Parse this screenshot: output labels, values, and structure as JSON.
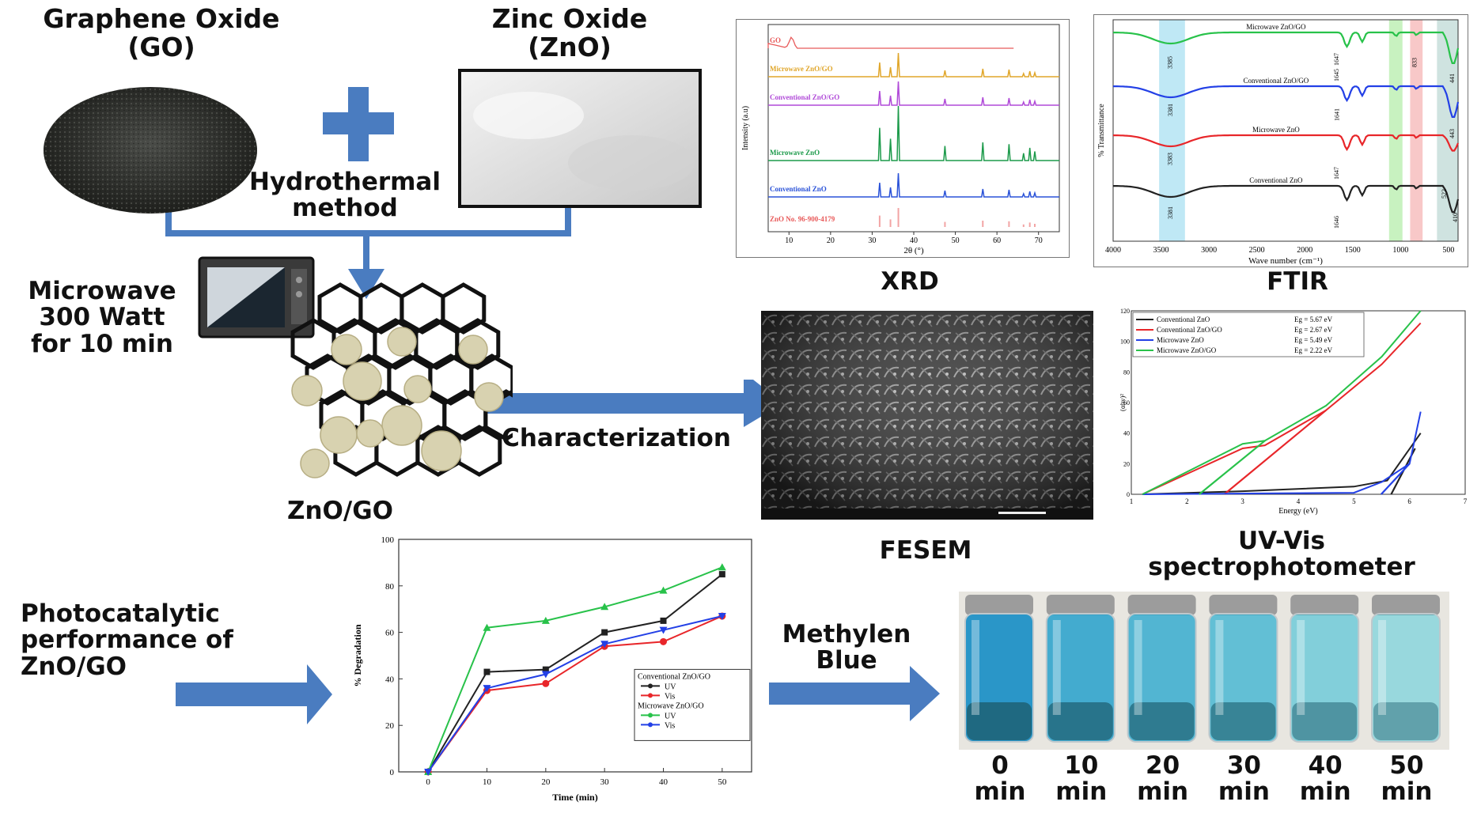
{
  "colors": {
    "arrow": "#4a7cc0",
    "go": "#2f312d",
    "zno": "#dcdcdc",
    "particle": "#d8d2b0",
    "line_black": "#222222",
    "line_red": "#e8262a",
    "line_blue": "#2340e6",
    "line_green": "#28c24a",
    "xrd_gold": "#e0a62a",
    "xrd_purple": "#b04ad8",
    "xrd_green": "#1c9a4a",
    "xrd_blue": "#2a52d8",
    "xrd_red": "#e85a5a",
    "blue_solution": "#2aa3cf"
  },
  "labels": {
    "go": "Graphene Oxide\n(GO)",
    "zno": "Zinc Oxide\n(ZnO)",
    "hydrothermal": "Hydrothermal\nmethod",
    "microwave": "Microwave\n300 Watt\nfor 10 min",
    "znogo": "ZnO/GO",
    "characterization": "Characterization",
    "xrd": "XRD",
    "ftir": "FTIR",
    "fesem": "FESEM",
    "uvvis": "UV-Vis\nspectrophotometer",
    "photocat": "Photocatalytic\nperformance of\nZnO/GO",
    "methylene": "Methylen\nBlue"
  },
  "vial_times": [
    "0\nmin",
    "10\nmin",
    "20\nmin",
    "30\nmin",
    "40\nmin",
    "50\nmin"
  ],
  "vial_levels": [
    1.0,
    0.82,
    0.72,
    0.6,
    0.38,
    0.22
  ],
  "xrd": {
    "xlabel": "2θ (°)",
    "ylabel": "Intensity (a.u)",
    "xticks": [
      "10",
      "20",
      "30",
      "40",
      "50",
      "60",
      "70"
    ],
    "series": [
      "GO",
      "Microwave ZnO/GO",
      "Conventional ZnO/GO",
      "Microwave ZnO",
      "Conventional ZnO",
      "ZnO No. 96-900-4179"
    ]
  },
  "ftir": {
    "xlabel": "Wave number (cm⁻¹)",
    "ylabel": "% Transmittance",
    "xticks": [
      "4000",
      "3500",
      "3000",
      "2500",
      "2000",
      "1500",
      "1000",
      "500"
    ],
    "series": [
      "Microwave ZnO/GO",
      "Conventional ZnO/GO",
      "Microwave ZnO",
      "Conventional ZnO"
    ],
    "peaks": [
      "3385",
      "3381",
      "3383",
      "3381",
      "1647",
      "1641",
      "1645",
      "1647",
      "1646",
      "833",
      "441",
      "443",
      "522",
      "410"
    ]
  },
  "tauc": {
    "xlabel": "Energy (eV)",
    "ylabel": "(αhν)²",
    "xticks": [
      "1",
      "2",
      "3",
      "4",
      "5",
      "6",
      "7"
    ],
    "yticks": [
      "0",
      "20",
      "40",
      "60",
      "80",
      "100",
      "120"
    ],
    "legend": [
      {
        "name": "Conventional ZnO",
        "eg": "Eg = 5.67 eV"
      },
      {
        "name": "Conventional ZnO/GO",
        "eg": "Eg = 2.67 eV"
      },
      {
        "name": "Microwave ZnO",
        "eg": "Eg = 5.49 eV"
      },
      {
        "name": "Microwave ZnO/GO",
        "eg": "Eg = 2.22 eV"
      }
    ]
  },
  "chart_data": {
    "type": "line",
    "xlabel": "Time (min)",
    "ylabel": "% Degradation",
    "x": [
      0,
      10,
      20,
      30,
      40,
      50
    ],
    "ylim": [
      0,
      100
    ],
    "xticks": [
      "0",
      "10",
      "20",
      "30",
      "40",
      "50"
    ],
    "yticks": [
      "0",
      "20",
      "40",
      "60",
      "80",
      "100"
    ],
    "legend_groups": [
      "Conventional ZnO/GO",
      "Microwave ZnO/GO"
    ],
    "series": [
      {
        "name": "UV",
        "group": "Conventional ZnO/GO",
        "color": "#222222",
        "marker": "square",
        "values": [
          0,
          43,
          44,
          60,
          65,
          85
        ]
      },
      {
        "name": "Vis",
        "group": "Conventional ZnO/GO",
        "color": "#e8262a",
        "marker": "circle",
        "values": [
          0,
          35,
          38,
          54,
          56,
          67
        ]
      },
      {
        "name": "UV",
        "group": "Microwave ZnO/GO",
        "color": "#28c24a",
        "marker": "triangle-up",
        "values": [
          0,
          62,
          65,
          71,
          78,
          88
        ]
      },
      {
        "name": "Vis",
        "group": "Microwave ZnO/GO",
        "color": "#2340e6",
        "marker": "triangle-down",
        "values": [
          0,
          36,
          42,
          55,
          61,
          67
        ]
      }
    ]
  }
}
